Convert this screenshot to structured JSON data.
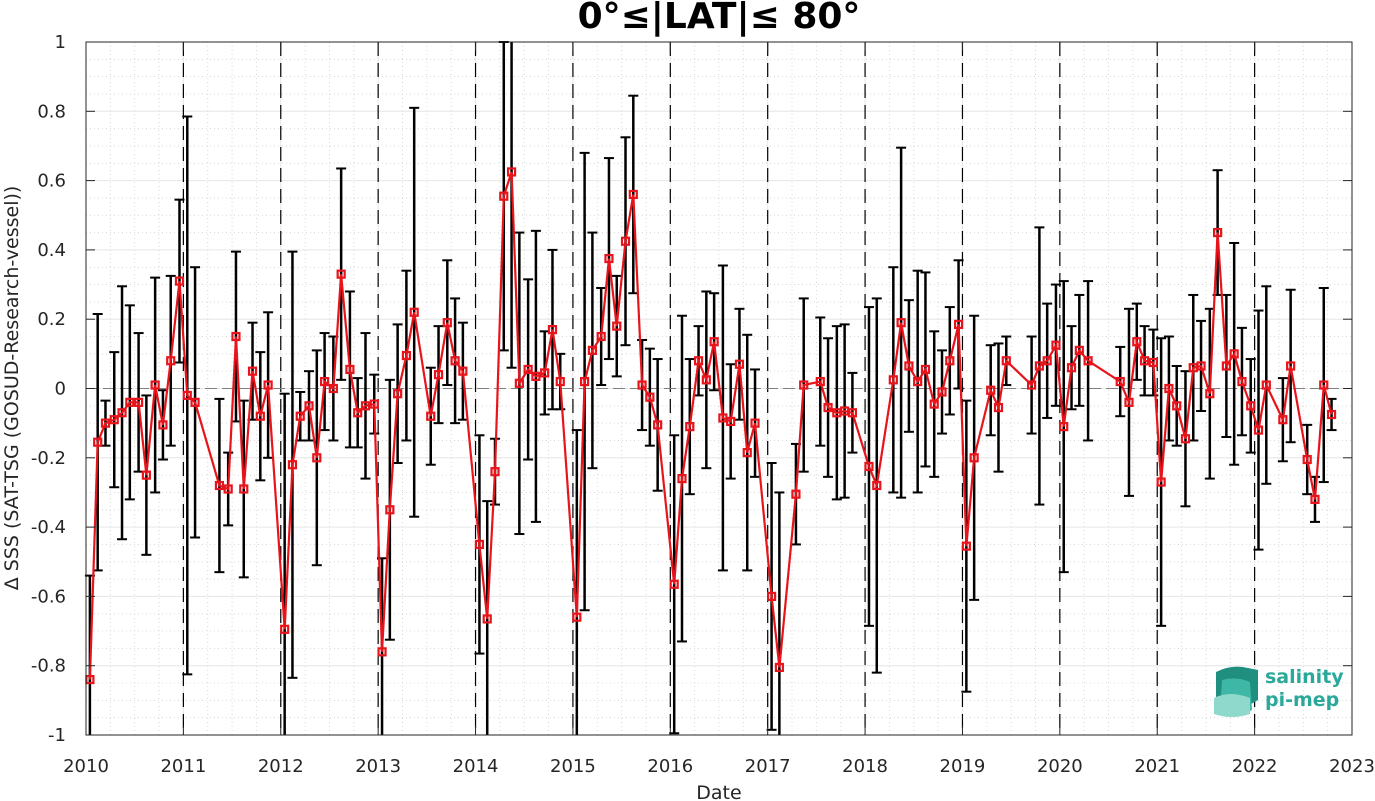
{
  "chart_data": {
    "type": "line",
    "title": "0°≤|LAT|≤ 80°",
    "xlabel": "Date",
    "ylabel": "Δ SSS (SAT-TSG (GOSUD-Research-vessel))",
    "xlim": [
      2010,
      2023
    ],
    "ylim": [
      -1,
      1
    ],
    "x_ticks": [
      "2010",
      "2011",
      "2012",
      "2013",
      "2014",
      "2015",
      "2016",
      "2017",
      "2018",
      "2019",
      "2020",
      "2021",
      "2022",
      "2023"
    ],
    "y_ticks": [
      "1",
      "0.8",
      "0.6",
      "0.4",
      "0.2",
      "0",
      "-0.2",
      "-0.4",
      "-0.6",
      "-0.8",
      "-1"
    ],
    "grid": true,
    "colors": {
      "series": "#e8141b",
      "errorbar": "#000000",
      "zero_line": "#7f7f7f",
      "year_line": "#000000",
      "logo": "#2aa99b"
    },
    "series": [
      {
        "marker": "square",
        "x": [
          2010.04,
          2010.12,
          2010.2,
          2010.29,
          2010.37,
          2010.45,
          2010.54,
          2010.62,
          2010.71,
          2010.79,
          2010.87,
          2010.96,
          2011.04,
          2011.12,
          2011.37,
          2011.46,
          2011.54,
          2011.62,
          2011.71,
          2011.79,
          2011.87,
          2012.04,
          2012.12,
          2012.2,
          2012.29,
          2012.37,
          2012.45,
          2012.54,
          2012.62,
          2012.71,
          2012.79,
          2012.87,
          2012.96,
          2013.04,
          2013.12,
          2013.2,
          2013.29,
          2013.37,
          2013.54,
          2013.62,
          2013.71,
          2013.79,
          2013.87,
          2014.04,
          2014.12,
          2014.2,
          2014.29,
          2014.37,
          2014.45,
          2014.54,
          2014.62,
          2014.71,
          2014.79,
          2014.87,
          2015.04,
          2015.12,
          2015.2,
          2015.29,
          2015.37,
          2015.45,
          2015.54,
          2015.62,
          2015.71,
          2015.79,
          2015.87,
          2016.04,
          2016.12,
          2016.2,
          2016.29,
          2016.37,
          2016.45,
          2016.54,
          2016.62,
          2016.71,
          2016.79,
          2016.87,
          2017.04,
          2017.12,
          2017.29,
          2017.37,
          2017.54,
          2017.62,
          2017.71,
          2017.79,
          2017.87,
          2018.04,
          2018.12,
          2018.29,
          2018.37,
          2018.45,
          2018.54,
          2018.62,
          2018.71,
          2018.79,
          2018.87,
          2018.96,
          2019.04,
          2019.12,
          2019.29,
          2019.37,
          2019.45,
          2019.71,
          2019.79,
          2019.87,
          2019.96,
          2020.04,
          2020.12,
          2020.2,
          2020.29,
          2020.62,
          2020.71,
          2020.79,
          2020.87,
          2020.96,
          2021.04,
          2021.12,
          2021.2,
          2021.29,
          2021.37,
          2021.45,
          2021.54,
          2021.62,
          2021.71,
          2021.79,
          2021.87,
          2021.96,
          2022.04,
          2022.12,
          2022.29,
          2022.37,
          2022.54,
          2022.62,
          2022.71,
          2022.79
        ],
        "y": [
          -0.84,
          -0.155,
          -0.1,
          -0.09,
          -0.07,
          -0.04,
          -0.04,
          -0.25,
          0.01,
          -0.105,
          0.08,
          0.31,
          -0.02,
          -0.04,
          -0.28,
          -0.29,
          0.15,
          -0.29,
          0.05,
          -0.08,
          0.01,
          -0.695,
          -0.22,
          -0.08,
          -0.05,
          -0.2,
          0.02,
          0.0,
          0.33,
          0.055,
          -0.07,
          -0.05,
          -0.045,
          -0.76,
          -0.35,
          -0.015,
          0.095,
          0.22,
          -0.08,
          0.04,
          0.19,
          0.08,
          0.05,
          -0.45,
          -0.665,
          -0.24,
          0.555,
          0.625,
          0.015,
          0.055,
          0.035,
          0.045,
          0.17,
          0.02,
          -0.66,
          0.02,
          0.11,
          0.15,
          0.375,
          0.18,
          0.425,
          0.56,
          0.01,
          -0.025,
          -0.105,
          -0.565,
          -0.26,
          -0.11,
          0.08,
          0.025,
          0.135,
          -0.085,
          -0.095,
          0.07,
          -0.185,
          -0.1,
          -0.6,
          -0.805,
          -0.305,
          0.01,
          0.02,
          -0.055,
          -0.07,
          -0.065,
          -0.07,
          -0.225,
          -0.28,
          0.025,
          0.19,
          0.065,
          0.02,
          0.055,
          -0.045,
          -0.01,
          0.08,
          0.185,
          -0.455,
          -0.2,
          -0.005,
          -0.055,
          0.08,
          0.01,
          0.065,
          0.08,
          0.125,
          -0.11,
          0.06,
          0.11,
          0.08,
          0.02,
          -0.04,
          0.135,
          0.08,
          0.075,
          -0.27,
          0.0,
          -0.05,
          -0.145,
          0.06,
          0.065,
          -0.015,
          0.45,
          0.065,
          0.1,
          0.02,
          -0.05,
          -0.12,
          0.01,
          -0.09,
          0.065,
          -0.205,
          -0.32,
          0.01,
          -0.075
        ],
        "err": [
          0.3,
          0.37,
          0.065,
          0.195,
          0.365,
          0.28,
          0.2,
          0.23,
          0.31,
          0.1,
          0.245,
          0.235,
          0.805,
          0.39,
          0.25,
          0.105,
          0.245,
          0.255,
          0.14,
          0.185,
          0.21,
          0.68,
          0.615,
          0.07,
          0.1,
          0.31,
          0.14,
          0.15,
          0.305,
          0.225,
          0.1,
          0.21,
          0.085,
          0.27,
          0.375,
          0.2,
          0.245,
          0.59,
          0.14,
          0.14,
          0.18,
          0.18,
          0.14,
          0.315,
          0.34,
          0.095,
          0.445,
          0.565,
          0.435,
          0.26,
          0.42,
          0.12,
          0.23,
          0.08,
          0.54,
          0.66,
          0.34,
          0.14,
          0.29,
          0.145,
          0.3,
          0.285,
          0.13,
          0.14,
          0.19,
          0.43,
          0.47,
          0.195,
          0.1,
          0.255,
          0.14,
          0.44,
          0.165,
          0.16,
          0.34,
          0.155,
          0.385,
          0.505,
          0.145,
          0.25,
          0.185,
          0.2,
          0.25,
          0.25,
          0.115,
          0.46,
          0.54,
          0.325,
          0.505,
          0.19,
          0.32,
          0.28,
          0.21,
          0.12,
          0.155,
          0.185,
          0.42,
          0.41,
          0.13,
          0.185,
          0.07,
          0.14,
          0.4,
          0.165,
          0.175,
          0.42,
          0.12,
          0.16,
          0.23,
          0.1,
          0.27,
          0.11,
          0.1,
          0.095,
          0.415,
          0.15,
          0.115,
          0.195,
          0.21,
          0.13,
          0.245,
          0.18,
          0.205,
          0.32,
          0.155,
          0.135,
          0.345,
          0.285,
          0.12,
          0.22,
          0.1,
          0.065,
          0.28,
          0.045
        ]
      }
    ]
  },
  "logo": {
    "line1": "salinity",
    "line2": "pi-mep"
  }
}
